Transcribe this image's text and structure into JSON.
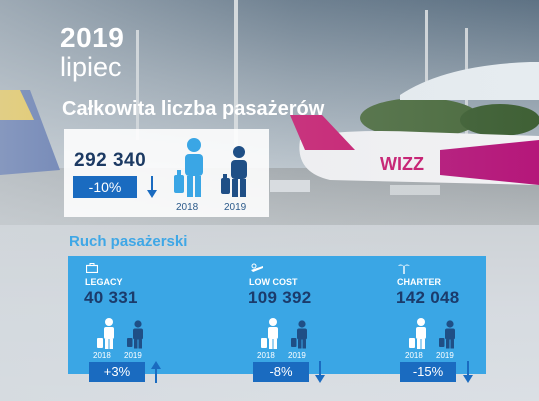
{
  "header": {
    "year": "2019",
    "month": "lipiec",
    "title": "Całkowita liczba pasażerów"
  },
  "total": {
    "value": "292 340",
    "change": "-10%",
    "trend": "down",
    "year_prev": "2018",
    "year_curr": "2019"
  },
  "traffic": {
    "title": "Ruch pasażerski",
    "categories": [
      {
        "label": "LEGACY",
        "icon": "briefcase-icon",
        "value": "40 331",
        "change": "+3%",
        "trend": "up",
        "year_prev": "2018",
        "year_curr": "2019"
      },
      {
        "label": "LOW COST",
        "icon": "discount-plane-icon",
        "value": "109 392",
        "change": "-8%",
        "trend": "down",
        "year_prev": "2018",
        "year_curr": "2019"
      },
      {
        "label": "CHARTER",
        "icon": "palm-tree-icon",
        "value": "142 048",
        "change": "-15%",
        "trend": "down",
        "year_prev": "2018",
        "year_curr": "2019"
      }
    ]
  },
  "colors": {
    "accent": "#3aa6e5",
    "dark_blue": "#1b3b6b",
    "badge_blue": "#1a6bc0",
    "person_light": "#ffffff",
    "person_dark": "#1f4f86"
  }
}
